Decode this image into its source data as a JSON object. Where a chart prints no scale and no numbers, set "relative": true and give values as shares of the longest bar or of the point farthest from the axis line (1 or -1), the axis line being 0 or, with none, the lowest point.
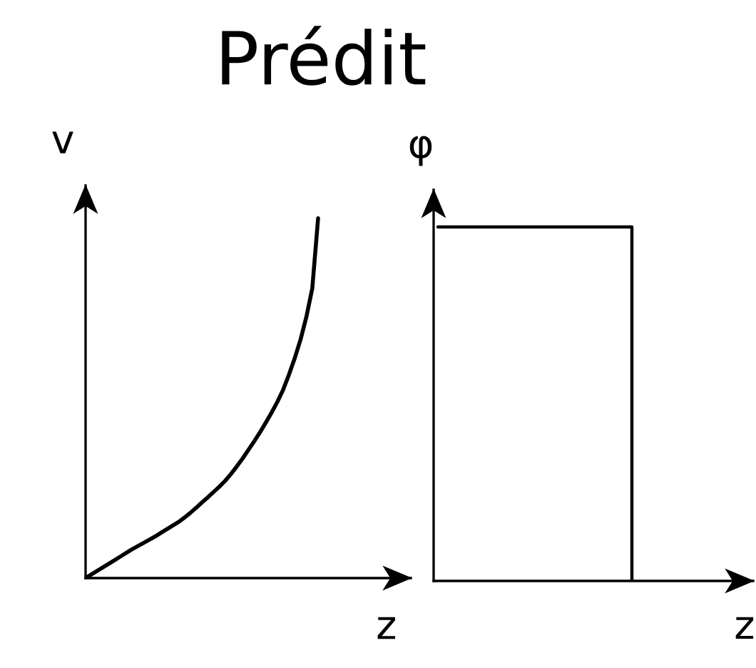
{
  "chart_data": [
    {
      "type": "line",
      "title": "Prédit",
      "xlabel": "z",
      "ylabel": "v",
      "relative": true,
      "categories": [
        null,
        null,
        null,
        null,
        null,
        null,
        null,
        null,
        null,
        null,
        null,
        null,
        null,
        null,
        null,
        null,
        null,
        null,
        null,
        null,
        null,
        null,
        null,
        null,
        null,
        null,
        null,
        null,
        null,
        null,
        null,
        null,
        null,
        null,
        null,
        null,
        null,
        null,
        null,
        null,
        null
      ],
      "series": [
        {
          "color": "#000000",
          "values": [
            0,
            0.01,
            0.02,
            0.03,
            0.04,
            0.05,
            0.06,
            0.07,
            0.08,
            0.089,
            0.098,
            0.107,
            0.116,
            0.126,
            0.136,
            0.146,
            0.156,
            0.168,
            0.181,
            0.195,
            0.21,
            0.224,
            0.239,
            0.254,
            0.27,
            0.289,
            0.31,
            0.332,
            0.356,
            0.38,
            0.405,
            0.432,
            0.46,
            0.49,
            0.524,
            0.566,
            0.612,
            0.664,
            0.727,
            0.805,
            1.0
          ]
        }
      ]
    },
    {
      "type": "step",
      "xlabel": "z",
      "ylabel": "φ",
      "relative": true,
      "categories": [
        null,
        null,
        null
      ],
      "series": [
        {
          "color": "#000000",
          "values": [
            1,
            1,
            0
          ]
        }
      ]
    }
  ]
}
